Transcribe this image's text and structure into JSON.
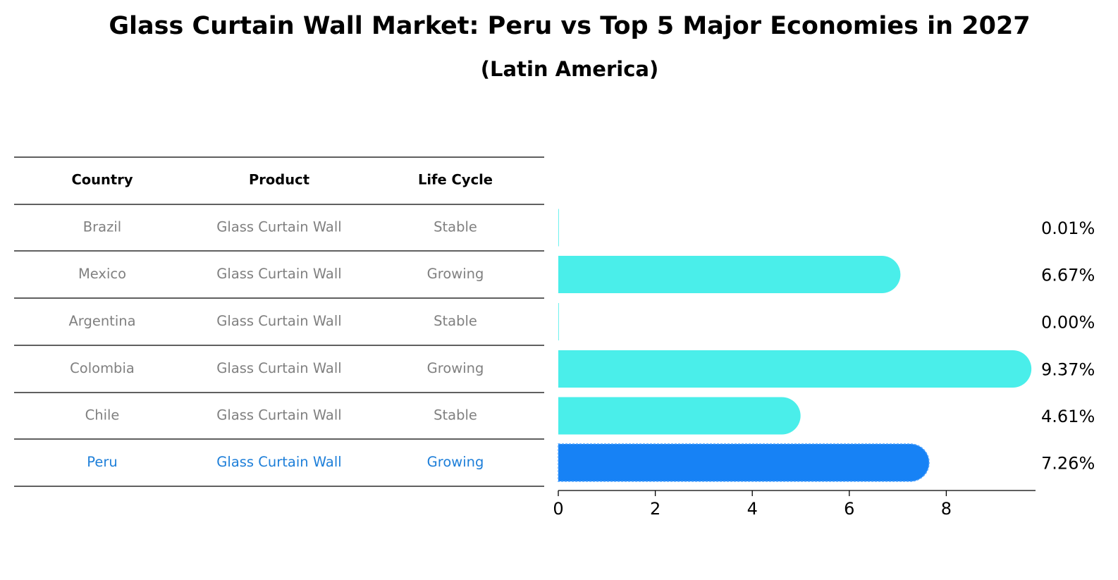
{
  "title": "Glass Curtain Wall Market: Peru vs Top 5 Major Economies in 2027",
  "subtitle": "(Latin America)",
  "colors": {
    "bar": "#4aeeea",
    "highlight_bar": "#1782f5",
    "highlight_text": "#1e7fd9",
    "text": "#808080"
  },
  "table": {
    "headers": [
      "Country",
      "Product",
      "Life Cycle"
    ],
    "rows": [
      [
        "Brazil",
        "Glass Curtain Wall",
        "Stable"
      ],
      [
        "Mexico",
        "Glass Curtain Wall",
        "Growing"
      ],
      [
        "Argentina",
        "Glass Curtain Wall",
        "Stable"
      ],
      [
        "Colombia",
        "Glass Curtain Wall",
        "Growing"
      ],
      [
        "Chile",
        "Glass Curtain Wall",
        "Stable"
      ],
      [
        "Peru",
        "Glass Curtain Wall",
        "Growing"
      ]
    ],
    "highlight_row": 5
  },
  "chart_data": {
    "type": "bar",
    "orientation": "horizontal",
    "title": "Glass Curtain Wall Market: Peru vs Top 5 Major Economies in 2027",
    "subtitle": "(Latin America)",
    "categories": [
      "Brazil",
      "Mexico",
      "Argentina",
      "Colombia",
      "Chile",
      "Peru"
    ],
    "values": [
      0.01,
      6.67,
      0.0,
      9.37,
      4.61,
      7.26
    ],
    "value_labels": [
      "0.01%",
      "6.67%",
      "0.00%",
      "9.37%",
      "4.61%",
      "7.26%"
    ],
    "highlight": "Peru",
    "xlim": [
      0,
      9.84
    ],
    "xticks": [
      0,
      2,
      4,
      6,
      8
    ],
    "grid": false,
    "xlabel": "",
    "ylabel": ""
  }
}
